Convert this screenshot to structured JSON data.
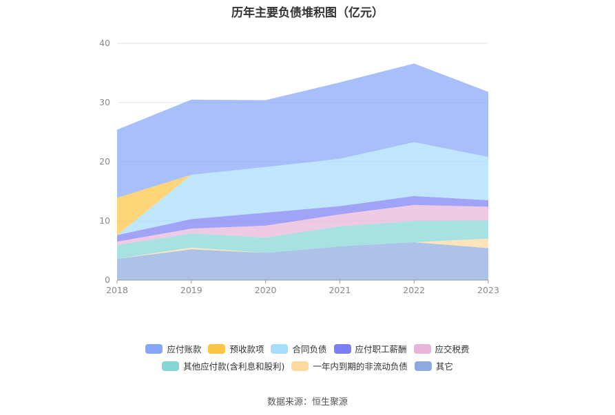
{
  "chart_data": {
    "type": "area",
    "stacked": true,
    "title": "历年主要负债堆积图（亿元）",
    "x": [
      "2018",
      "2019",
      "2020",
      "2021",
      "2022",
      "2023"
    ],
    "ylim": [
      0,
      40
    ],
    "yticks": [
      0,
      10,
      20,
      30,
      40
    ],
    "grid": true,
    "legend_position": "bottom",
    "series": [
      {
        "name": "其它",
        "color": "#8eaadf",
        "values": [
          3.6,
          5.2,
          4.6,
          5.7,
          6.4,
          5.4
        ]
      },
      {
        "name": "一年内到期的非流动负债",
        "color": "#fdd9a0",
        "values": [
          0.0,
          0.3,
          0.0,
          0.0,
          0.0,
          1.6
        ]
      },
      {
        "name": "其他应付款(含利息和股利)",
        "color": "#87d6d6",
        "values": [
          2.3,
          2.4,
          2.6,
          3.4,
          3.6,
          3.1
        ]
      },
      {
        "name": "应交税费",
        "color": "#e7b5da",
        "values": [
          0.6,
          0.8,
          2.0,
          2.0,
          2.7,
          2.3
        ]
      },
      {
        "name": "应付职工薪酬",
        "color": "#7b7ff2",
        "values": [
          1.1,
          1.6,
          2.2,
          1.4,
          1.5,
          1.1
        ]
      },
      {
        "name": "合同负债",
        "color": "#a6ddfb",
        "values": [
          0.0,
          7.5,
          7.7,
          8.0,
          9.1,
          7.3
        ]
      },
      {
        "name": "预收款项",
        "color": "#fdc545",
        "values": [
          6.3,
          0.0,
          0.0,
          0.0,
          0.0,
          0.0
        ]
      },
      {
        "name": "应付账款",
        "color": "#87a6f8",
        "values": [
          11.5,
          12.7,
          11.3,
          12.9,
          13.3,
          11.0
        ]
      }
    ]
  },
  "legend": {
    "row1": [
      {
        "label": "应付账款",
        "color": "#87a6f8"
      },
      {
        "label": "预收款项",
        "color": "#fdc545"
      },
      {
        "label": "合同负债",
        "color": "#a6ddfb"
      },
      {
        "label": "应付职工薪酬",
        "color": "#7b7ff2"
      },
      {
        "label": "应交税费",
        "color": "#e7b5da"
      }
    ],
    "row2": [
      {
        "label": "其他应付款(含利息和股利)",
        "color": "#87d6d6"
      },
      {
        "label": "一年内到期的非流动负债",
        "color": "#fdd9a0"
      },
      {
        "label": "其它",
        "color": "#8eaadf"
      }
    ]
  },
  "source": "数据来源：恒生聚源"
}
